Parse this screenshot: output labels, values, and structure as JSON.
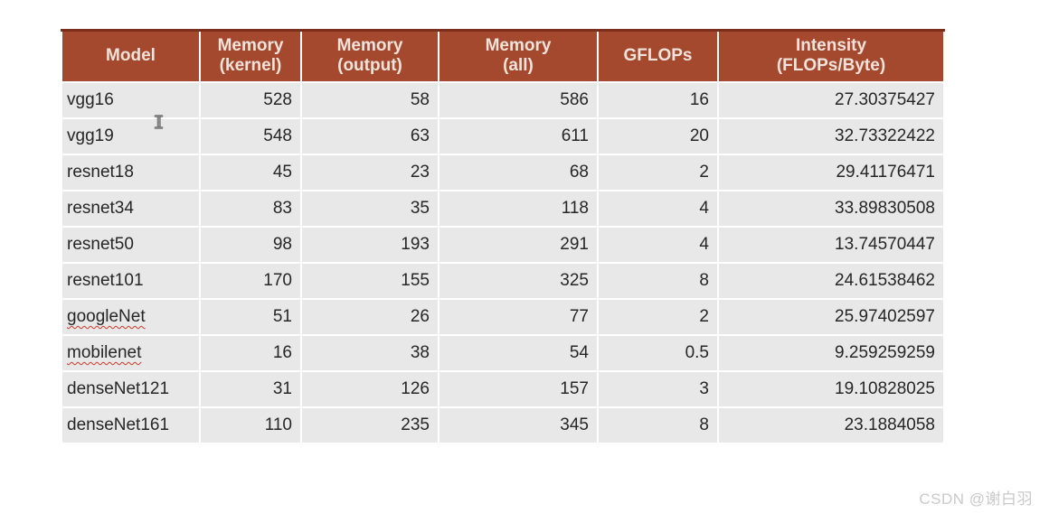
{
  "chart_data": {
    "type": "table",
    "columns": [
      "Model",
      "Memory (kernel)",
      "Memory (output)",
      "Memory (all)",
      "GFLOPs",
      "Intensity (FLOPs/Byte)"
    ],
    "rows": [
      [
        "vgg16",
        528,
        58,
        586,
        16,
        27.30375427
      ],
      [
        "vgg19",
        548,
        63,
        611,
        20,
        32.73322422
      ],
      [
        "resnet18",
        45,
        23,
        68,
        2,
        29.41176471
      ],
      [
        "resnet34",
        83,
        35,
        118,
        4,
        33.89830508
      ],
      [
        "resnet50",
        98,
        193,
        291,
        4,
        13.74570447
      ],
      [
        "resnet101",
        170,
        155,
        325,
        8,
        24.61538462
      ],
      [
        "googleNet",
        51,
        26,
        77,
        2,
        25.97402597
      ],
      [
        "mobilenet",
        16,
        38,
        54,
        0.5,
        9.259259259
      ],
      [
        "denseNet121",
        31,
        126,
        157,
        3,
        19.10828025
      ],
      [
        "denseNet161",
        110,
        235,
        345,
        8,
        23.1884058
      ]
    ]
  },
  "table": {
    "headers": [
      "Model",
      "Memory\n(kernel)",
      "Memory\n(output)",
      "Memory\n(all)",
      "GFLOPs",
      "Intensity\n(FLOPs/Byte)"
    ],
    "rows": [
      {
        "cells": [
          "vgg16",
          "528",
          "58",
          "586",
          "16",
          "27.30375427"
        ],
        "spellcheck_underline": false
      },
      {
        "cells": [
          "vgg19",
          "548",
          "63",
          "611",
          "20",
          "32.73322422"
        ],
        "spellcheck_underline": false
      },
      {
        "cells": [
          "resnet18",
          "45",
          "23",
          "68",
          "2",
          "29.41176471"
        ],
        "spellcheck_underline": false
      },
      {
        "cells": [
          "resnet34",
          "83",
          "35",
          "118",
          "4",
          "33.89830508"
        ],
        "spellcheck_underline": false
      },
      {
        "cells": [
          "resnet50",
          "98",
          "193",
          "291",
          "4",
          "13.74570447"
        ],
        "spellcheck_underline": false
      },
      {
        "cells": [
          "resnet101",
          "170",
          "155",
          "325",
          "8",
          "24.61538462"
        ],
        "spellcheck_underline": false
      },
      {
        "cells": [
          "googleNet",
          "51",
          "26",
          "77",
          "2",
          "25.97402597"
        ],
        "spellcheck_underline": true
      },
      {
        "cells": [
          "mobilenet",
          "16",
          "38",
          "54",
          "0.5",
          "9.259259259"
        ],
        "spellcheck_underline": true
      },
      {
        "cells": [
          "denseNet121",
          "31",
          "126",
          "157",
          "3",
          "19.10828025"
        ],
        "spellcheck_underline": false
      },
      {
        "cells": [
          "denseNet161",
          "110",
          "235",
          "345",
          "8",
          "23.1884058"
        ],
        "spellcheck_underline": false
      }
    ]
  },
  "cursor": {
    "type": "text-ibeam"
  },
  "watermark": {
    "text": "CSDN @谢白羽"
  },
  "colors": {
    "header_bg": "#A4492E",
    "header_top_border": "#7A2E1C",
    "header_text": "#F1E3DB",
    "row_bg": "#E8E8E8",
    "cell_text": "#262626",
    "watermark_text": "#C9C9C9",
    "squiggle": "#D03A2B"
  }
}
